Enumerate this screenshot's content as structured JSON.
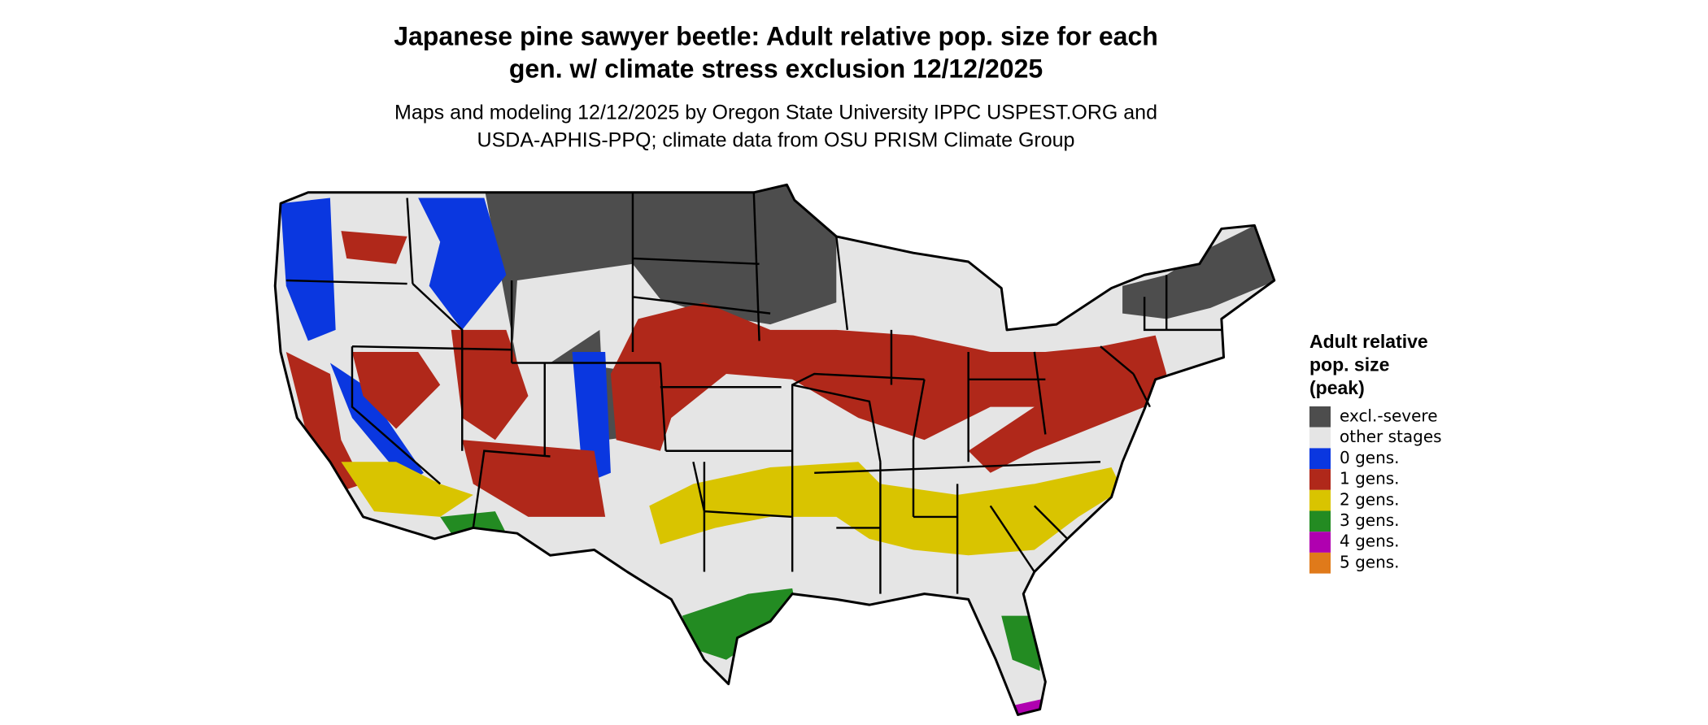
{
  "header": {
    "title": [
      "Japanese pine sawyer beetle: Adult relative pop. size for each",
      "gen. w/ climate stress exclusion 12/12/2025"
    ],
    "subtitle": [
      "Maps and modeling 12/12/2025 by Oregon State University IPPC USPEST.ORG and",
      "USDA-APHIS-PPQ; climate data from OSU PRISM Climate Group"
    ]
  },
  "legend": {
    "title": [
      "Adult relative",
      "pop. size",
      "(peak)"
    ],
    "items": [
      {
        "label": "excl.-severe",
        "color": "#4d4d4d"
      },
      {
        "label": "other stages",
        "color": "#e5e5e5"
      },
      {
        "label": "0 gens.",
        "color": "#0a37e0"
      },
      {
        "label": "1 gens.",
        "color": "#b0281a"
      },
      {
        "label": "2 gens.",
        "color": "#d9c400"
      },
      {
        "label": "3 gens.",
        "color": "#238b22"
      },
      {
        "label": "4 gens.",
        "color": "#b000b0"
      },
      {
        "label": "5 gens.",
        "color": "#e07a1a"
      }
    ]
  }
}
